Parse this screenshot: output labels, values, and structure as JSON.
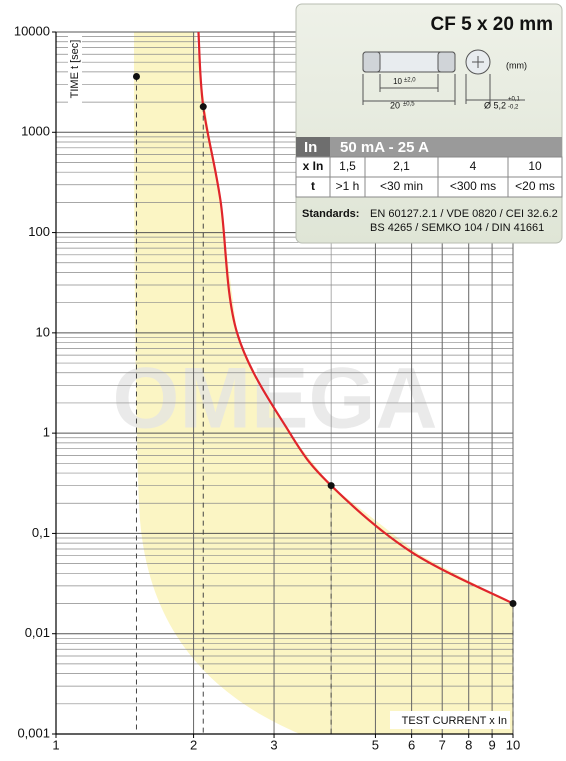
{
  "chart_data": {
    "type": "line",
    "y_label": "TIME t [sec]",
    "x_label": "TEST CURRENT x In",
    "watermark": "OMEGA",
    "xscale": "log",
    "yscale": "log",
    "xlim": [
      1,
      10
    ],
    "ylim": [
      0.001,
      10000
    ],
    "xticks": [
      1,
      2,
      3,
      5,
      6,
      7,
      8,
      9,
      10
    ],
    "yticks": [
      10000,
      1000,
      100,
      10,
      1,
      {
        "value": 0.1,
        "label": "0,1"
      },
      {
        "value": 0.01,
        "label": "0,01"
      },
      {
        "value": 0.001,
        "label": "0,001"
      }
    ],
    "grid": true,
    "minor_grid": true,
    "series": [
      {
        "color": "#e0252b",
        "style": "line",
        "x": [
          2.05,
          2.1,
          2.29,
          2.49,
          3.25,
          4,
          6,
          10
        ],
        "values": [
          10000,
          1800,
          210,
          10,
          1,
          0.3,
          0.065,
          0.02
        ]
      },
      {
        "color": "#111111",
        "style": "markers",
        "droplines": true,
        "x": [
          1.5,
          2.1,
          4,
          10
        ],
        "values": [
          3600,
          1800,
          0.3,
          0.02
        ]
      }
    ]
  },
  "inset": {
    "title": "CF 5 x 20 mm",
    "unit": "(mm)",
    "dim_inner": "10",
    "tol_inner": "±2,0",
    "dim_length": "20",
    "tol_length": "±0,5",
    "dim_diameter": "Ø 5,2",
    "tol_plus": "+0,1",
    "tol_minus": "-0,2",
    "rating_label": "In",
    "rating": "50 mA - 25 A",
    "rows": [
      [
        "x In",
        "1,5",
        "2,1",
        "4",
        "10"
      ],
      [
        "t",
        ">1 h",
        "<30 min",
        "<300 ms",
        "<20 ms"
      ]
    ],
    "standards_label": "Standards:",
    "standards": [
      "EN 60127.2.1 / VDE 0820 / CEI 32.6.2",
      "BS 4265 / SEMKO 104 / DIN 41661"
    ]
  }
}
